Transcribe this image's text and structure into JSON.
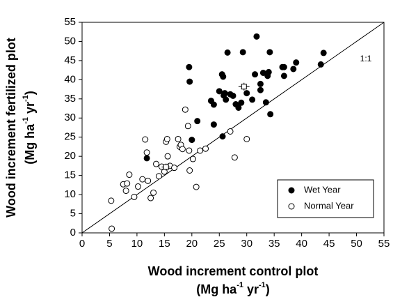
{
  "chart_data": {
    "type": "scatter",
    "xlabel": {
      "line1": "Wood increment control plot",
      "line2": [
        "(Mg ha",
        "-1",
        " yr",
        "-1",
        ")"
      ]
    },
    "ylabel": {
      "line1": "Wood increment fertilized plot",
      "line2": [
        "(Mg ha",
        "-1",
        " yr",
        "-1",
        ")"
      ]
    },
    "annotation": "1:1",
    "xlim": [
      0,
      55
    ],
    "ylim": [
      0,
      55
    ],
    "xticks": [
      0,
      5,
      10,
      15,
      20,
      25,
      30,
      35,
      40,
      45,
      50,
      55
    ],
    "yticks": [
      0,
      5,
      10,
      15,
      20,
      25,
      30,
      35,
      40,
      45,
      50,
      55
    ],
    "legend": "lower right",
    "series": [
      {
        "name": "Wet Year",
        "color": "#000000",
        "filled": true,
        "x": [
          19.5,
          19.6,
          21,
          20,
          11.8,
          23.5,
          24,
          24,
          25,
          25.5,
          25.7,
          25.6,
          26,
          26.5,
          26.2,
          25.8,
          27,
          27.5,
          28,
          28.5,
          29,
          29.3,
          30,
          31,
          31.5,
          31.8,
          32.5,
          32.5,
          33,
          33.5,
          33.8,
          34,
          34.2,
          34.3,
          36.5,
          36.8,
          36.8,
          38.5,
          39,
          43.5,
          44
        ],
        "values": [
          43.3,
          39.5,
          29.2,
          24.3,
          19.5,
          34.5,
          33.5,
          28.3,
          37,
          41.4,
          40.8,
          25.2,
          36.5,
          47.1,
          34.8,
          35.9,
          36.2,
          35.8,
          33.6,
          32.7,
          34,
          47.2,
          36.5,
          34.8,
          41.4,
          51.3,
          38.9,
          37.3,
          41.8,
          34.1,
          41,
          42,
          47.2,
          31,
          43.3,
          43.3,
          41,
          42.8,
          44.5,
          44,
          47
        ]
      },
      {
        "name": "Normal Year",
        "color": "#000000",
        "filled": false,
        "x": [
          5.3,
          5.4,
          7.5,
          8,
          8.2,
          8.6,
          9.5,
          10.2,
          11,
          11.5,
          11.8,
          12,
          12.5,
          13,
          13.5,
          14,
          14.5,
          15.3,
          15.5,
          15,
          16,
          15.6,
          16.8,
          17.5,
          17.8,
          18,
          18.3,
          18.8,
          19.3,
          19.6,
          19.5,
          20.2,
          20.8,
          21.5,
          22.5,
          27,
          27.8,
          30
        ],
        "values": [
          8.4,
          1.1,
          12.7,
          11,
          12.9,
          15.2,
          9.4,
          12.1,
          14,
          24.4,
          21,
          13.6,
          9.1,
          10.5,
          18,
          14.8,
          17.3,
          23.8,
          24.5,
          16,
          17.5,
          20,
          17,
          24.5,
          22.5,
          23,
          21.9,
          32.2,
          27.9,
          16.3,
          21.5,
          19.3,
          12,
          21.5,
          22,
          26.5,
          19.7,
          24.5
        ]
      }
    ],
    "means": {
      "x": [
        29.5,
        15.3
      ],
      "values": [
        38.2,
        17.2
      ],
      "xerr": [
        1,
        0.8
      ],
      "yerr": [
        1,
        0.9
      ]
    }
  }
}
